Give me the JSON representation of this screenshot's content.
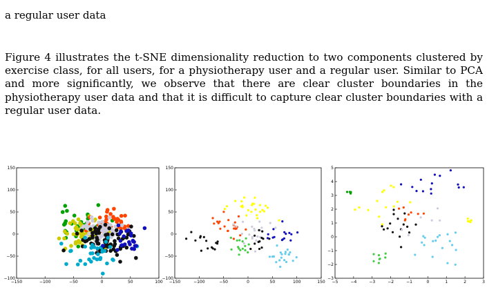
{
  "text": {
    "fragment": "a regular user data",
    "paragraph": "Figure 4 illustrates the t-SNE dimensionality reduction to two components clustered by exercise class, for all users, for a physiotherapy user and a regular user. Similar to PCA and more significantly, we observe that there are clear cluster boundaries in the physiotherapy user data and that it is difficult to capture clear cluster boundaries with a regular user data."
  },
  "colors": [
    "#00a000",
    "#cccc00",
    "#ff4400",
    "#ccccdd",
    "#111111",
    "#00aacc",
    "#1111bb",
    "#ffff00",
    "#44cc44",
    "#66ccee"
  ],
  "chart_data": [
    {
      "type": "scatter",
      "title": "",
      "xlabel": "",
      "ylabel": "",
      "xlim": [
        -150,
        100
      ],
      "ylim": [
        -100,
        150
      ],
      "xticks": [
        "−150",
        "−100",
        "−50",
        "0",
        "50",
        "100"
      ],
      "yticks": [
        "150",
        "100",
        "50",
        "0",
        "−50",
        "−100"
      ],
      "grid": false,
      "marker_size": 2.8,
      "clusters": [
        {
          "c": 0,
          "n": 40,
          "cx": -38,
          "cy": 15,
          "sx": 22,
          "sy": 20,
          "seed": 1
        },
        {
          "c": 1,
          "n": 70,
          "cx": -28,
          "cy": 0,
          "sx": 18,
          "sy": 18,
          "seed": 2
        },
        {
          "c": 2,
          "n": 45,
          "cx": 15,
          "cy": 25,
          "sx": 20,
          "sy": 18,
          "seed": 3
        },
        {
          "c": 3,
          "n": 60,
          "cx": 0,
          "cy": 10,
          "sx": 14,
          "sy": 14,
          "seed": 4
        },
        {
          "c": 4,
          "n": 80,
          "cx": 10,
          "cy": -10,
          "sx": 28,
          "sy": 18,
          "seed": 5
        },
        {
          "c": 5,
          "n": 35,
          "cx": -10,
          "cy": -40,
          "sx": 30,
          "sy": 18,
          "seed": 6
        },
        {
          "c": 6,
          "n": 25,
          "cx": 40,
          "cy": -15,
          "sx": 20,
          "sy": 18,
          "seed": 7
        }
      ]
    },
    {
      "type": "scatter",
      "title": "",
      "xlabel": "",
      "ylabel": "",
      "xlim": [
        -150,
        150
      ],
      "ylim": [
        -100,
        150
      ],
      "xticks": [
        "−150",
        "−100",
        "−50",
        "0",
        "50",
        "100",
        "150"
      ],
      "yticks": [
        "150",
        "100",
        "50",
        "0",
        "−50",
        "−100"
      ],
      "grid": false,
      "marker_size": 1.6,
      "clusters": [
        {
          "c": 7,
          "n": 25,
          "cx": 5,
          "cy": 55,
          "sx": 22,
          "sy": 16,
          "seed": 11
        },
        {
          "c": 2,
          "n": 22,
          "cx": -40,
          "cy": 20,
          "sx": 16,
          "sy": 14,
          "seed": 12
        },
        {
          "c": 3,
          "n": 20,
          "cx": 5,
          "cy": 0,
          "sx": 18,
          "sy": 14,
          "seed": 13
        },
        {
          "c": 4,
          "n": 15,
          "cx": -80,
          "cy": -15,
          "sx": 14,
          "sy": 12,
          "seed": 14
        },
        {
          "c": 8,
          "n": 15,
          "cx": -20,
          "cy": -25,
          "sx": 14,
          "sy": 12,
          "seed": 15
        },
        {
          "c": 4,
          "n": 12,
          "cx": 30,
          "cy": -10,
          "sx": 12,
          "sy": 12,
          "seed": 16
        },
        {
          "c": 6,
          "n": 15,
          "cx": 75,
          "cy": -5,
          "sx": 14,
          "sy": 12,
          "seed": 17
        },
        {
          "c": 9,
          "n": 20,
          "cx": 75,
          "cy": -55,
          "sx": 22,
          "sy": 10,
          "seed": 18
        }
      ]
    },
    {
      "type": "scatter",
      "title": "",
      "xlabel": "",
      "ylabel": "",
      "xlim": [
        -5,
        3
      ],
      "ylim": [
        -3,
        5
      ],
      "xticks": [
        "−5",
        "−4",
        "−3",
        "−2",
        "−1",
        "0",
        "1",
        "2",
        "3"
      ],
      "yticks": [
        "5",
        "4",
        "3",
        "2",
        "1",
        "0",
        "−1",
        "−2",
        "−3"
      ],
      "grid": false,
      "marker_size": 1.6,
      "clusters": [
        {
          "c": 0,
          "n": 4,
          "cx": -4.3,
          "cy": 3.2,
          "sx": 0.08,
          "sy": 0.05,
          "seed": 21
        },
        {
          "c": 7,
          "n": 14,
          "cx": -2.3,
          "cy": 2.2,
          "sx": 0.6,
          "sy": 0.8,
          "seed": 22
        },
        {
          "c": 6,
          "n": 14,
          "cx": 0.5,
          "cy": 3.8,
          "sx": 0.8,
          "sy": 0.5,
          "seed": 23
        },
        {
          "c": 4,
          "n": 16,
          "cx": -1.6,
          "cy": 0.7,
          "sx": 0.5,
          "sy": 0.6,
          "seed": 24
        },
        {
          "c": 2,
          "n": 8,
          "cx": -0.7,
          "cy": 1.7,
          "sx": 0.4,
          "sy": 0.5,
          "seed": 25
        },
        {
          "c": 9,
          "n": 18,
          "cx": 0.7,
          "cy": -0.2,
          "sx": 0.6,
          "sy": 0.8,
          "seed": 26
        },
        {
          "c": 8,
          "n": 8,
          "cx": -2.4,
          "cy": -1.6,
          "sx": 0.3,
          "sy": 0.3,
          "seed": 27
        },
        {
          "c": 7,
          "n": 6,
          "cx": 2.3,
          "cy": 1.2,
          "sx": 0.15,
          "sy": 0.1,
          "seed": 28
        },
        {
          "c": 3,
          "n": 6,
          "cx": -0.3,
          "cy": 1.0,
          "sx": 0.5,
          "sy": 0.5,
          "seed": 29
        }
      ]
    }
  ]
}
